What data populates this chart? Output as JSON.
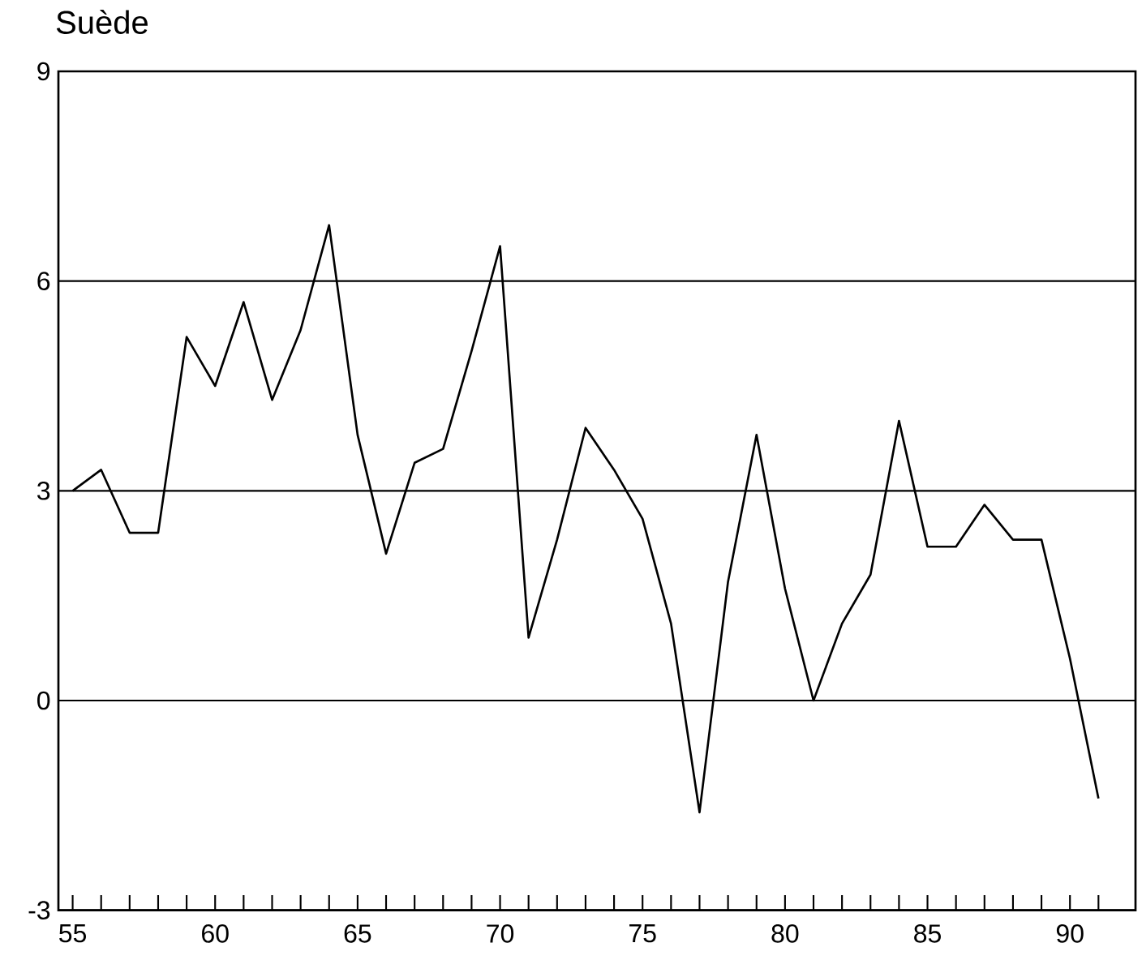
{
  "chart_data": {
    "type": "line",
    "title": "Suède",
    "x": [
      55,
      56,
      57,
      58,
      59,
      60,
      61,
      62,
      63,
      64,
      65,
      66,
      67,
      68,
      69,
      70,
      71,
      72,
      73,
      74,
      75,
      76,
      77,
      78,
      79,
      80,
      81,
      82,
      83,
      84,
      85,
      86,
      87,
      88,
      89,
      90,
      91
    ],
    "series": [
      {
        "color": "#000000",
        "values": [
          3.0,
          3.3,
          2.4,
          2.4,
          5.2,
          4.5,
          5.7,
          4.3,
          5.3,
          6.8,
          3.8,
          2.1,
          3.4,
          3.6,
          5.0,
          6.5,
          0.9,
          2.3,
          3.9,
          3.3,
          2.6,
          1.1,
          -1.6,
          1.7,
          3.8,
          1.6,
          0.0,
          1.1,
          1.8,
          4.0,
          2.2,
          2.2,
          2.8,
          2.3,
          2.3,
          0.6,
          -1.4
        ]
      }
    ],
    "xlim": [
      54.5,
      92.3
    ],
    "xticks": [
      55,
      {
        "value": 56,
        "label": null
      },
      {
        "value": 57,
        "label": null
      },
      {
        "value": 58,
        "label": null
      },
      {
        "value": 59,
        "label": null
      },
      60,
      {
        "value": 61,
        "label": null
      },
      {
        "value": 62,
        "label": null
      },
      {
        "value": 63,
        "label": null
      },
      {
        "value": 64,
        "label": null
      },
      65,
      {
        "value": 66,
        "label": null
      },
      {
        "value": 67,
        "label": null
      },
      {
        "value": 68,
        "label": null
      },
      {
        "value": 69,
        "label": null
      },
      70,
      {
        "value": 71,
        "label": null
      },
      {
        "value": 72,
        "label": null
      },
      {
        "value": 73,
        "label": null
      },
      {
        "value": 74,
        "label": null
      },
      75,
      {
        "value": 76,
        "label": null
      },
      {
        "value": 77,
        "label": null
      },
      {
        "value": 78,
        "label": null
      },
      {
        "value": 79,
        "label": null
      },
      80,
      {
        "value": 81,
        "label": null
      },
      {
        "value": 82,
        "label": null
      },
      {
        "value": 83,
        "label": null
      },
      {
        "value": 84,
        "label": null
      },
      85,
      {
        "value": 86,
        "label": null
      },
      {
        "value": 87,
        "label": null
      },
      {
        "value": 88,
        "label": null
      },
      {
        "value": 89,
        "label": null
      },
      90,
      {
        "value": 91,
        "label": null
      }
    ],
    "ylim": [
      -3,
      9
    ],
    "yticks": [
      -3,
      0,
      3,
      6,
      9
    ],
    "grid": "y",
    "line_style": "solid",
    "marker": "none"
  }
}
